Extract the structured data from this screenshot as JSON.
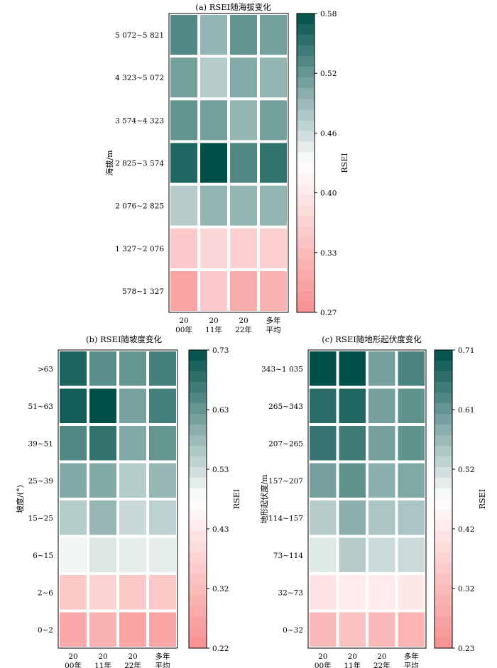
{
  "colors": {
    "low": "#f78f8f",
    "mid": "#ffffff",
    "high": "#00504a"
  },
  "chart_data": [
    {
      "type": "heatmap",
      "title": "(a) RSEI随海拔变化",
      "ylabel": "海拔/m",
      "colorbar_label": "RSEI",
      "columns": [
        "2000年",
        "2011年",
        "2022年",
        "多年平均"
      ],
      "rows": [
        "5 072~5 821",
        "4 323~5 072",
        "3 574~4 323",
        "2 825~3 574",
        "2 076~2 825",
        "1 327~2 076",
        "578~1 327"
      ],
      "values": [
        [
          0.53,
          0.49,
          0.52,
          0.51
        ],
        [
          0.51,
          0.47,
          0.5,
          0.49
        ],
        [
          0.52,
          0.51,
          0.49,
          0.51
        ],
        [
          0.56,
          0.58,
          0.53,
          0.55
        ],
        [
          0.47,
          0.49,
          0.49,
          0.49
        ],
        [
          0.35,
          0.37,
          0.36,
          0.36
        ],
        [
          0.3,
          0.35,
          0.31,
          0.32
        ]
      ],
      "vmin": 0.27,
      "vmax": 0.58,
      "colorbar_ticks": [
        "0.58",
        "0.52",
        "0.46",
        "0.40",
        "0.33",
        "0.27"
      ]
    },
    {
      "type": "heatmap",
      "title": "(b) RSEI随坡度变化",
      "ylabel": "坡度/(°)",
      "colorbar_label": "RSEI",
      "columns": [
        "2000年",
        "2011年",
        "2022年",
        "多年平均"
      ],
      "rows": [
        ">63",
        "51~63",
        "39~51",
        "25~39",
        "15~25",
        "6~15",
        "2~6",
        "0~2"
      ],
      "values": [
        [
          0.7,
          0.64,
          0.63,
          0.66
        ],
        [
          0.71,
          0.73,
          0.61,
          0.66
        ],
        [
          0.65,
          0.68,
          0.6,
          0.63
        ],
        [
          0.6,
          0.6,
          0.55,
          0.58
        ],
        [
          0.55,
          0.58,
          0.53,
          0.54
        ],
        [
          0.49,
          0.51,
          0.5,
          0.5
        ],
        [
          0.35,
          0.37,
          0.35,
          0.35
        ],
        [
          0.28,
          0.3,
          0.27,
          0.27
        ]
      ],
      "vmin": 0.22,
      "vmax": 0.73,
      "colorbar_ticks": [
        "0.73",
        "0.63",
        "0.53",
        "0.43",
        "0.32",
        "0.22"
      ]
    },
    {
      "type": "heatmap",
      "title": "(c) RSEI随地形起伏度变化",
      "ylabel": "地形起伏度/m",
      "colorbar_label": "RSEI",
      "columns": [
        "2000年",
        "2011年",
        "2022年",
        "多年平均"
      ],
      "rows": [
        "343~1 035",
        "265~343",
        "207~265",
        "157~207",
        "114~157",
        "73~114",
        "32~73",
        "0~32"
      ],
      "values": [
        [
          0.71,
          0.71,
          0.6,
          0.64
        ],
        [
          0.67,
          0.68,
          0.6,
          0.62
        ],
        [
          0.66,
          0.65,
          0.6,
          0.62
        ],
        [
          0.6,
          0.62,
          0.58,
          0.59
        ],
        [
          0.54,
          0.58,
          0.55,
          0.55
        ],
        [
          0.5,
          0.54,
          0.52,
          0.52
        ],
        [
          0.41,
          0.43,
          0.43,
          0.42
        ],
        [
          0.32,
          0.34,
          0.32,
          0.31
        ]
      ],
      "vmin": 0.23,
      "vmax": 0.71,
      "colorbar_ticks": [
        "0.71",
        "0.61",
        "0.52",
        "0.42",
        "0.32",
        "0.23"
      ]
    }
  ]
}
